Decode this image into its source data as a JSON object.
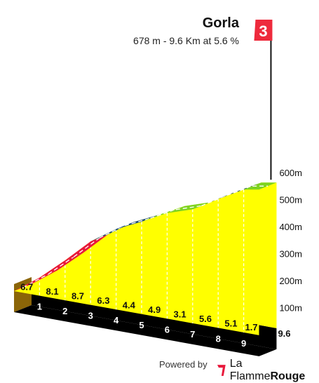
{
  "header": {
    "title": "Gorla",
    "subtitle": "678 m - 9.6 Km at 5.6 %",
    "category": "3"
  },
  "footer": {
    "powered_by": "Powered by",
    "brand_light": "La Flamme",
    "brand_bold": "Rouge"
  },
  "colors": {
    "profile_fill": "#ffff00",
    "base": "#000000",
    "side": "#8b6508",
    "flag": "#ee2a3c",
    "grade_red": "#e8193c",
    "grade_blue": "#1f4e79",
    "grade_green": "#7ed321"
  },
  "chart_data": {
    "type": "area",
    "x_unit": "km",
    "y_unit": "m",
    "km_labels": [
      "1",
      "2",
      "3",
      "4",
      "5",
      "6",
      "7",
      "8",
      "9"
    ],
    "final_km_label": "9.6",
    "segments": [
      {
        "km_start": 0,
        "km_end": 1,
        "gradient": 6.7,
        "label": "6.7",
        "color": "red"
      },
      {
        "km_start": 1,
        "km_end": 2,
        "gradient": 8.1,
        "label": "8.1",
        "color": "red"
      },
      {
        "km_start": 2,
        "km_end": 3,
        "gradient": 8.7,
        "label": "8.7",
        "color": "red"
      },
      {
        "km_start": 3,
        "km_end": 4,
        "gradient": 6.3,
        "label": "6.3",
        "color": "blue"
      },
      {
        "km_start": 4,
        "km_end": 5,
        "gradient": 4.4,
        "label": "4.4",
        "color": "blue"
      },
      {
        "km_start": 5,
        "km_end": 6,
        "gradient": 4.9,
        "label": "4.9",
        "color": "green"
      },
      {
        "km_start": 6,
        "km_end": 7,
        "gradient": 3.1,
        "label": "3.1",
        "color": "green"
      },
      {
        "km_start": 7,
        "km_end": 8,
        "gradient": 5.6,
        "label": "5.6",
        "color": "blue"
      },
      {
        "km_start": 8,
        "km_end": 9,
        "gradient": 5.1,
        "label": "5.1",
        "color": "blue"
      },
      {
        "km_start": 9,
        "km_end": 9.6,
        "gradient": 1.7,
        "label": "1.7",
        "color": "green"
      }
    ],
    "y_ticks": [
      {
        "value": 100,
        "label": "100m"
      },
      {
        "value": 200,
        "label": "200m"
      },
      {
        "value": 300,
        "label": "300m"
      },
      {
        "value": 400,
        "label": "400m"
      },
      {
        "value": 500,
        "label": "500m"
      },
      {
        "value": 600,
        "label": "600m"
      }
    ],
    "xlim": [
      0,
      9.6
    ],
    "ylim": [
      0,
      680
    ]
  }
}
